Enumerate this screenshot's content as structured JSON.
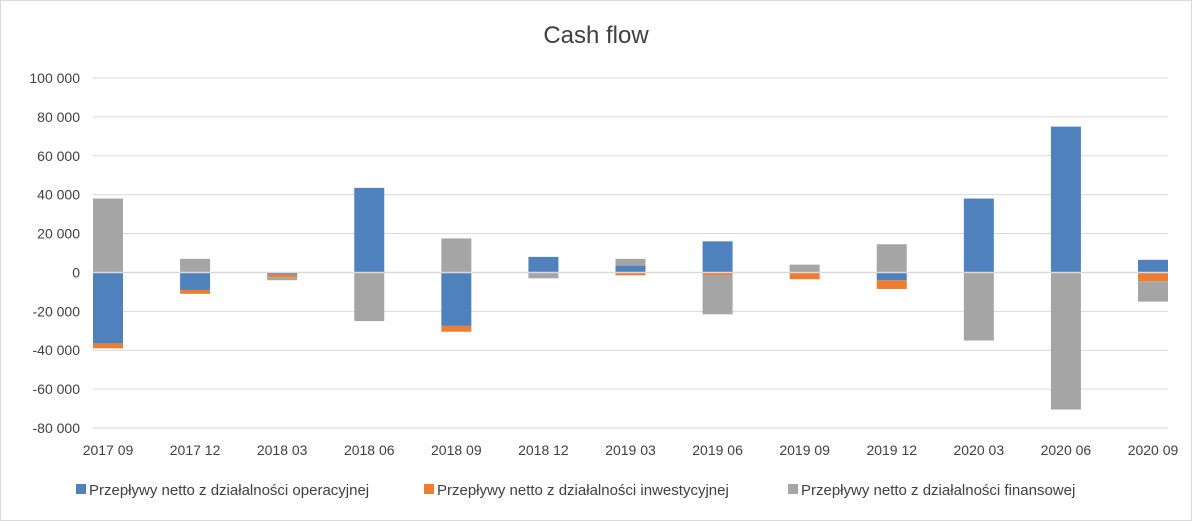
{
  "chart_data": {
    "type": "bar",
    "stacked": true,
    "title": "Cash flow",
    "categories": [
      "2017 09",
      "2017 12",
      "2018 03",
      "2018 06",
      "2018 09",
      "2018 12",
      "2019 03",
      "2019 06",
      "2019 09",
      "2019 12",
      "2020 03",
      "2020 06",
      "2020 09"
    ],
    "series": [
      {
        "name": "Przepływy netto z działalności operacyjnej",
        "color": "#4f81bd",
        "values": [
          -36500,
          -9000,
          -1000,
          43500,
          -27500,
          8000,
          3500,
          16000,
          0,
          -4000,
          38000,
          75000,
          6500
        ]
      },
      {
        "name": "Przepływy netto z działalności inwestycyjnej",
        "color": "#ed7d31",
        "values": [
          -2500,
          -2000,
          -1500,
          -500,
          -3000,
          0,
          -1500,
          -1500,
          -3500,
          -4500,
          -500,
          -500,
          -4500
        ]
      },
      {
        "name": "Przepływy netto z działalności finansowej",
        "color": "#a5a5a5",
        "values": [
          38000,
          7000,
          -1500,
          -24500,
          17500,
          -3000,
          3500,
          -20000,
          4000,
          14500,
          -34500,
          -70000,
          -10500
        ]
      }
    ],
    "ylim": [
      -80000,
      100000
    ],
    "yticks": [
      100000,
      80000,
      60000,
      40000,
      20000,
      0,
      -20000,
      -40000,
      -60000,
      -80000
    ],
    "ytick_labels": [
      "100 000",
      "80 000",
      "60 000",
      "40 000",
      "20 000",
      "0",
      "-20 000",
      "-40 000",
      "-60 000",
      "-80 000"
    ],
    "grid": true,
    "legend_position": "bottom"
  }
}
